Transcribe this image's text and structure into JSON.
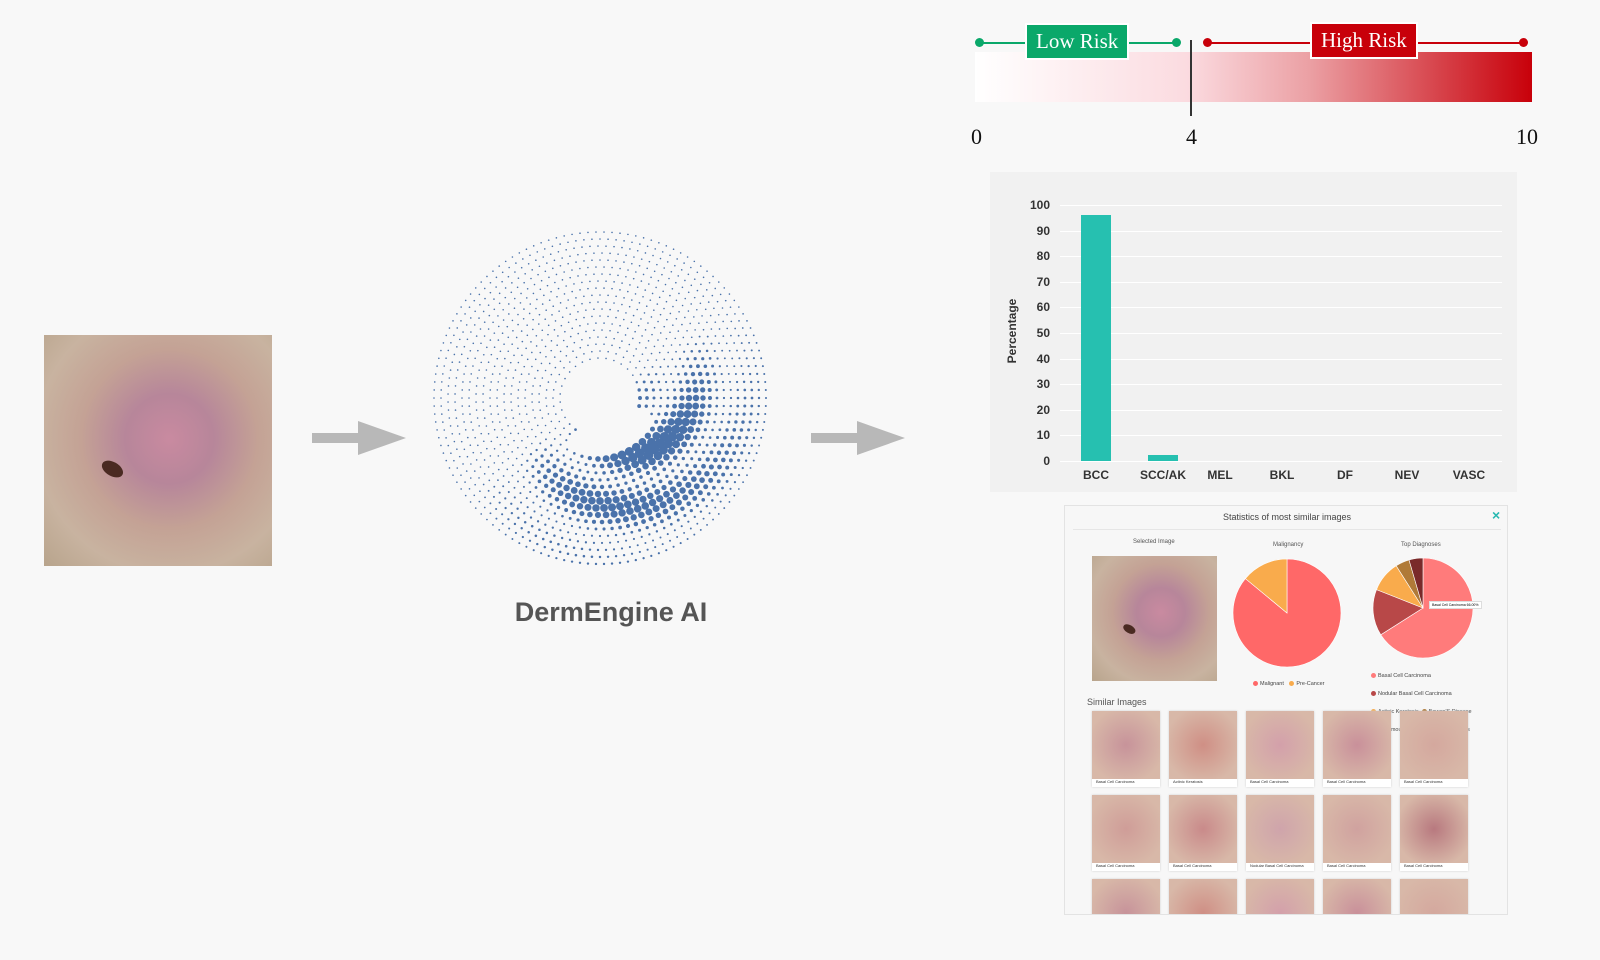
{
  "title": "DermEngine AI",
  "risk": {
    "low_label": "Low Risk",
    "high_label": "High Risk",
    "ticks": [
      "0",
      "4",
      "10"
    ],
    "threshold": 4,
    "max": 10,
    "low_color": "#0aa86a",
    "high_color": "#c8000a"
  },
  "chart_data": {
    "type": "bar",
    "categories": [
      "BCC",
      "SCC/AK",
      "MEL",
      "BKL",
      "DF",
      "NEV",
      "VASC"
    ],
    "values": [
      96,
      2.5,
      0,
      0,
      0,
      0,
      0
    ],
    "ylabel": "Percentage",
    "ylim": [
      0,
      100
    ],
    "yticks": [
      "0",
      "10",
      "20",
      "30",
      "40",
      "50",
      "60",
      "70",
      "80",
      "90",
      "100"
    ],
    "grid": true,
    "color": "#26c0b0"
  },
  "stats": {
    "title": "Statistics of most similar images",
    "close": "×",
    "selected_label": "Selected Image",
    "malignancy_label": "Malignancy",
    "top_label": "Top Diagnoses",
    "malignancy": [
      {
        "name": "Malignant",
        "value": 86,
        "color": "#ff6868"
      },
      {
        "name": "Pre-Cancer",
        "value": 14,
        "color": "#f9ab4c"
      }
    ],
    "top": [
      {
        "name": "Basal Cell Carcinoma",
        "value": 66,
        "color": "#ff7b7b"
      },
      {
        "name": "Nodular Basal Cell Carcinoma",
        "value": 15,
        "color": "#b84848"
      },
      {
        "name": "Actinic Keratosis",
        "value": 10,
        "color": "#f9ab4c"
      },
      {
        "name": "Bowen'S Disease",
        "value": 4.5,
        "color": "#b07a38"
      },
      {
        "name": "Squamous Cell Carcinoma",
        "value": 4.5,
        "color": "#7a2a2a"
      },
      {
        "name": "Others",
        "value": 0,
        "color": "#cccccc"
      }
    ],
    "tooltip": "Basal Cell Carcinoma 66.00%",
    "similar_label": "Similar Images",
    "similar": [
      "Basal Cell Carcinoma",
      "Actinic Keratosis",
      "Basal Cell Carcinoma",
      "Basal Cell Carcinoma",
      "Basal Cell Carcinoma",
      "Basal Cell Carcinoma",
      "Basal Cell Carcinoma",
      "Nodular Basal Cell Carcinoma",
      "Basal Cell Carcinoma",
      "Basal Cell Carcinoma",
      "",
      "",
      "",
      "",
      ""
    ]
  }
}
